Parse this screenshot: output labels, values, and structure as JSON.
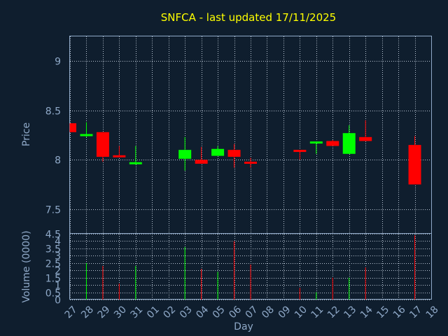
{
  "chart_data": {
    "type": "candlestick",
    "title": "SNFCA - last updated 17/11/2025",
    "colors": {
      "background": "#0f1e2e",
      "up": "#00ff00",
      "down": "#ff0000",
      "title": "#ffff00",
      "axis_text": "#8fa9c8",
      "frame": "#8fa9c8"
    },
    "grid": true,
    "x_label": "Day",
    "x_tick_labels": [
      "27",
      "28",
      "29",
      "30",
      "31",
      "01",
      "02",
      "03",
      "04",
      "05",
      "06",
      "07",
      "08",
      "09",
      "10",
      "11",
      "12",
      "13",
      "14",
      "15",
      "16",
      "17",
      "18"
    ],
    "price_panel": {
      "ylabel": "Price",
      "ylim": [
        7.25,
        9.25
      ],
      "y_ticks": [
        7.5,
        8,
        8.5,
        9
      ],
      "y_tick_labels": [
        "7.5",
        "8",
        "8.5",
        "9"
      ],
      "candles": [
        {
          "day": "27",
          "open": 8.37,
          "high": 8.37,
          "low": 8.28,
          "close": 8.28
        },
        {
          "day": "28",
          "open": 8.24,
          "high": 8.38,
          "low": 8.23,
          "close": 8.26
        },
        {
          "day": "29",
          "open": 8.28,
          "high": 8.28,
          "low": 7.98,
          "close": 8.03
        },
        {
          "day": "30",
          "open": 8.04,
          "high": 8.14,
          "low": 8.03,
          "close": 8.03
        },
        {
          "day": "31",
          "open": 7.96,
          "high": 8.14,
          "low": 7.95,
          "close": 7.97
        },
        {
          "day": "03",
          "open": 8.01,
          "high": 8.23,
          "low": 7.89,
          "close": 8.1
        },
        {
          "day": "04",
          "open": 8.0,
          "high": 8.13,
          "low": 7.96,
          "close": 7.96
        },
        {
          "day": "05",
          "open": 8.04,
          "high": 8.14,
          "low": 8.04,
          "close": 8.11
        },
        {
          "day": "06",
          "open": 8.1,
          "high": 8.16,
          "low": 7.92,
          "close": 8.03
        },
        {
          "day": "07",
          "open": 7.98,
          "high": 8.02,
          "low": 7.92,
          "close": 7.96
        },
        {
          "day": "10",
          "open": 8.1,
          "high": 8.1,
          "low": 8.0,
          "close": 8.08
        },
        {
          "day": "11",
          "open": 8.17,
          "high": 8.18,
          "low": 8.06,
          "close": 8.18
        },
        {
          "day": "12",
          "open": 8.19,
          "high": 8.2,
          "low": 8.14,
          "close": 8.14
        },
        {
          "day": "13",
          "open": 8.06,
          "high": 8.35,
          "low": 8.06,
          "close": 8.27
        },
        {
          "day": "14",
          "open": 8.23,
          "high": 8.4,
          "low": 8.19,
          "close": 8.19
        },
        {
          "day": "17",
          "open": 8.15,
          "high": 8.24,
          "low": 7.75,
          "close": 7.75
        }
      ]
    },
    "volume_panel": {
      "ylabel": "Volume (0000)",
      "ylim": [
        0,
        4.5
      ],
      "y_ticks": [
        0,
        0.5,
        1,
        1.5,
        2,
        2.5,
        3,
        3.5,
        4,
        4.5
      ],
      "y_tick_labels": [
        "0",
        "0.5",
        "1",
        "1.5",
        "2",
        "2.5",
        "3",
        "3.5",
        "4",
        "4.5"
      ],
      "bars": [
        {
          "day": "28",
          "volume": 2.5,
          "direction": "up"
        },
        {
          "day": "29",
          "volume": 2.3,
          "direction": "down"
        },
        {
          "day": "30",
          "volume": 1.1,
          "direction": "down"
        },
        {
          "day": "31",
          "volume": 2.3,
          "direction": "up"
        },
        {
          "day": "03",
          "volume": 3.6,
          "direction": "up"
        },
        {
          "day": "04",
          "volume": 2.1,
          "direction": "down"
        },
        {
          "day": "05",
          "volume": 1.9,
          "direction": "up"
        },
        {
          "day": "06",
          "volume": 4.0,
          "direction": "down"
        },
        {
          "day": "07",
          "volume": 2.4,
          "direction": "down"
        },
        {
          "day": "10",
          "volume": 0.8,
          "direction": "down"
        },
        {
          "day": "11",
          "volume": 0.5,
          "direction": "up"
        },
        {
          "day": "12",
          "volume": 1.5,
          "direction": "down"
        },
        {
          "day": "13",
          "volume": 1.5,
          "direction": "up"
        },
        {
          "day": "14",
          "volume": 2.2,
          "direction": "down"
        },
        {
          "day": "17",
          "volume": 4.4,
          "direction": "down"
        }
      ]
    }
  }
}
